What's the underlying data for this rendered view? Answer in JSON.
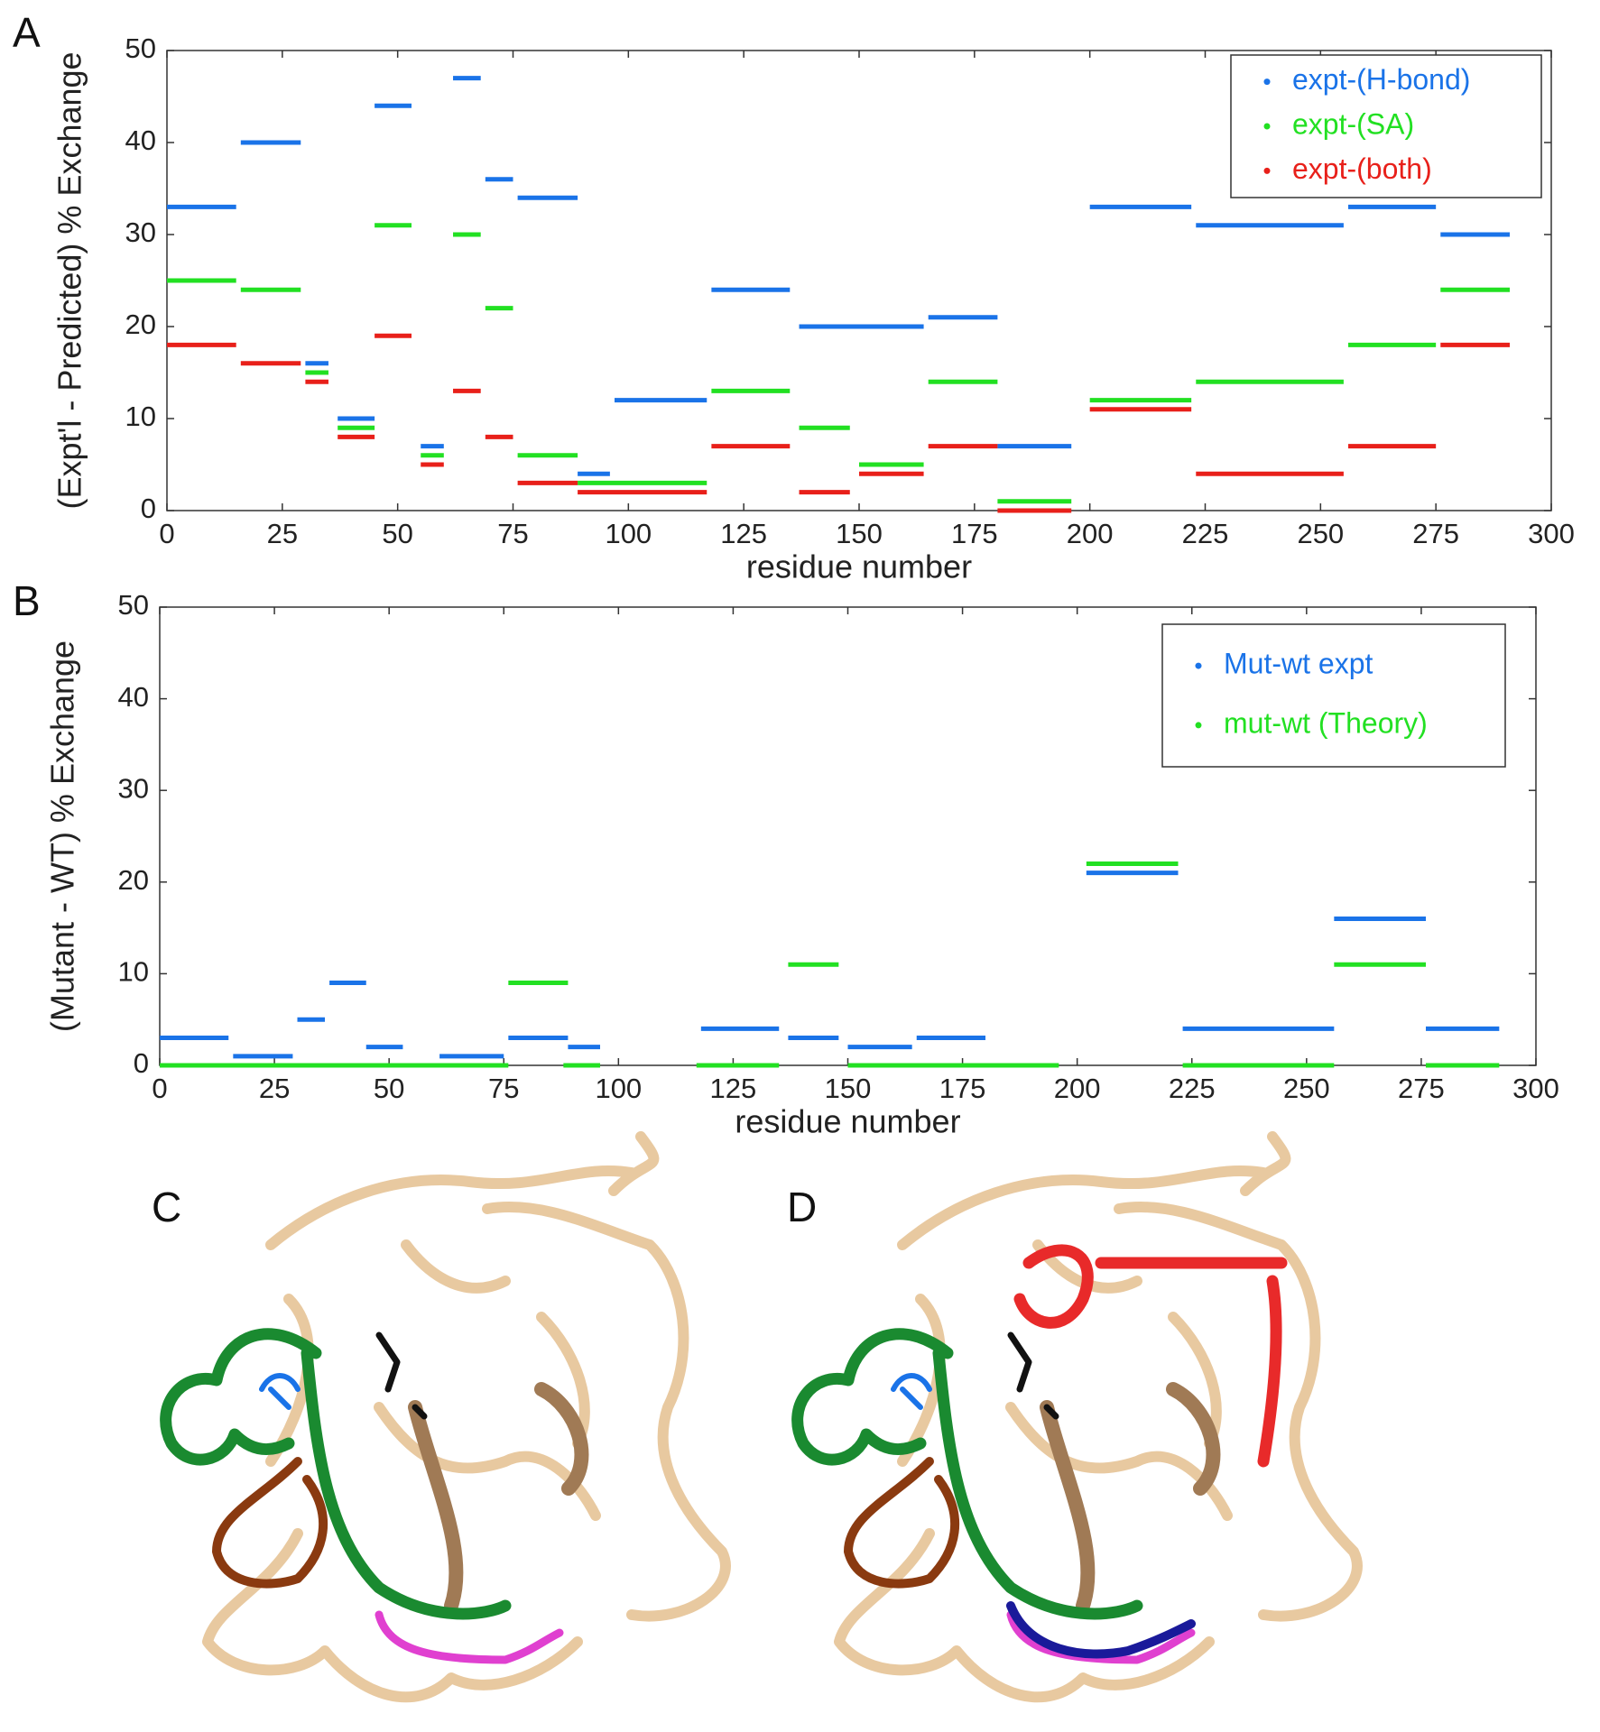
{
  "panel_labels": [
    "A",
    "B",
    "C",
    "D"
  ],
  "chart_data": [
    {
      "type": "segment",
      "xlabel": "residue number",
      "ylabel": "(Expt'l - Predicted) % Exchange",
      "xlim": [
        0,
        300
      ],
      "xticks": [
        0,
        25,
        50,
        75,
        100,
        125,
        150,
        175,
        200,
        225,
        250,
        275,
        300
      ],
      "ylim": [
        0,
        50
      ],
      "yticks": [
        0,
        10,
        20,
        30,
        40,
        50
      ],
      "legend": "upper right",
      "series": [
        {
          "name": "expt-(H-bond)",
          "color": "#1a73e8",
          "x_start": [
            0,
            16,
            30,
            37,
            45,
            55,
            62,
            69,
            76,
            89,
            97,
            118,
            137,
            165,
            180,
            200,
            223,
            256,
            276
          ],
          "x_end": [
            15,
            29,
            35,
            45,
            53,
            60,
            68,
            75,
            89,
            96,
            117,
            135,
            164,
            180,
            196,
            222,
            255,
            275,
            291
          ],
          "values": [
            33,
            40,
            16,
            10,
            44,
            7,
            47,
            36,
            34,
            4,
            12,
            24,
            20,
            21,
            7,
            33,
            31,
            33,
            30
          ]
        },
        {
          "name": "expt-(SA)",
          "color": "#22e022",
          "x_start": [
            0,
            16,
            30,
            37,
            45,
            55,
            62,
            69,
            76,
            89,
            118,
            137,
            150,
            165,
            180,
            200,
            223,
            256,
            276
          ],
          "x_end": [
            15,
            29,
            35,
            45,
            53,
            60,
            68,
            75,
            89,
            117,
            135,
            148,
            164,
            180,
            196,
            222,
            255,
            275,
            291
          ],
          "values": [
            25,
            24,
            15,
            9,
            31,
            6,
            30,
            22,
            6,
            3,
            13,
            9,
            5,
            14,
            1,
            12,
            14,
            18,
            24
          ]
        },
        {
          "name": "expt-(both)",
          "color": "#e8201a",
          "x_start": [
            0,
            16,
            30,
            37,
            45,
            55,
            62,
            69,
            76,
            89,
            118,
            137,
            150,
            165,
            180,
            200,
            223,
            256,
            276
          ],
          "x_end": [
            15,
            29,
            35,
            45,
            53,
            60,
            68,
            75,
            89,
            117,
            135,
            148,
            164,
            180,
            196,
            222,
            255,
            275,
            291
          ],
          "values": [
            18,
            16,
            14,
            8,
            19,
            5,
            13,
            8,
            3,
            2,
            7,
            2,
            4,
            7,
            0,
            11,
            4,
            7,
            18
          ]
        }
      ]
    },
    {
      "type": "segment",
      "xlabel": "residue number",
      "ylabel": "(Mutant - WT) % Exchange",
      "xlim": [
        0,
        300
      ],
      "xticks": [
        0,
        25,
        50,
        75,
        100,
        125,
        150,
        175,
        200,
        225,
        250,
        275,
        300
      ],
      "ylim": [
        0,
        50
      ],
      "yticks": [
        0,
        10,
        20,
        30,
        40,
        50
      ],
      "legend": "upper right",
      "series": [
        {
          "name": "Mut-wt expt",
          "color": "#1a73e8",
          "x_start": [
            0,
            16,
            30,
            37,
            45,
            61,
            76,
            89,
            118,
            137,
            150,
            165,
            202,
            223,
            256,
            276
          ],
          "x_end": [
            15,
            29,
            36,
            45,
            53,
            75,
            89,
            96,
            135,
            148,
            164,
            180,
            222,
            256,
            276,
            292
          ],
          "values": [
            3,
            1,
            5,
            9,
            2,
            1,
            3,
            2,
            4,
            3,
            2,
            3,
            21,
            4,
            16,
            4
          ]
        },
        {
          "name": "mut-wt (Theory)",
          "color": "#22e022",
          "x_start": [
            0,
            76,
            88,
            117,
            137,
            150,
            202,
            223,
            256,
            276
          ],
          "x_end": [
            76,
            89,
            96,
            135,
            148,
            196,
            222,
            256,
            276,
            292
          ],
          "values": [
            0,
            9,
            0,
            0,
            11,
            0,
            22,
            0,
            11,
            0
          ]
        }
      ]
    }
  ]
}
